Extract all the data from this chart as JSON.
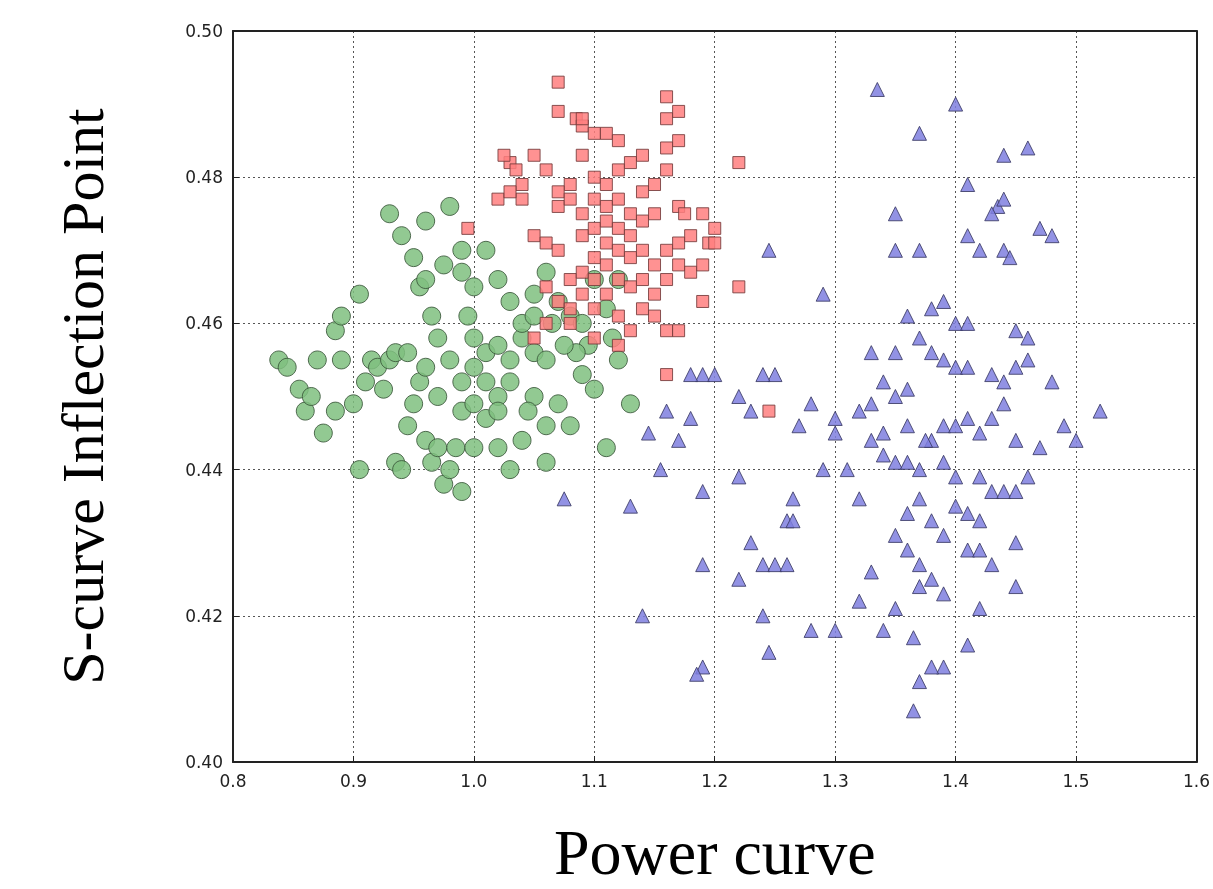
{
  "chart_data": {
    "type": "scatter",
    "xlabel": "Power curve",
    "ylabel": "S-curve Inflection Point",
    "xlim": [
      0.8,
      1.6
    ],
    "ylim": [
      0.4,
      0.5
    ],
    "xticks": [
      0.8,
      0.9,
      {
        "value": 1.0,
        "label": "1.0"
      },
      1.1,
      1.2,
      1.3,
      1.4,
      1.5,
      1.6
    ],
    "yticks": [
      {
        "value": 0.4,
        "label": "0.40"
      },
      0.42,
      0.44,
      0.46,
      0.48,
      {
        "value": 0.5,
        "label": "0.50"
      }
    ],
    "grid": true,
    "series": [
      {
        "color": "#ff7f7f",
        "marker": "square",
        "x": [
          1.07,
          1.085,
          1.09,
          1.11,
          1.12,
          1.16,
          1.16,
          1.17,
          1.07,
          1.08,
          1.1,
          1.16,
          1.17,
          1.03,
          1.04,
          1.035,
          1.05,
          1.06,
          1.07,
          1.09,
          1.1,
          1.11,
          1.12,
          1.13,
          1.14,
          1.15,
          1.16,
          1.07,
          1.08,
          1.1,
          1.11,
          1.12,
          1.13,
          1.14,
          1.15,
          1.17,
          1.19,
          1.2,
          1.22,
          1.02,
          1.04,
          0.995,
          1.05,
          1.06,
          1.07,
          1.09,
          1.1,
          1.11,
          1.12,
          1.13,
          1.14,
          1.15,
          1.16,
          1.17,
          1.18,
          1.195,
          1.08,
          1.09,
          1.1,
          1.11,
          1.12,
          1.13,
          1.14,
          1.15,
          1.16,
          1.17,
          1.18,
          1.06,
          1.07,
          1.09,
          1.1,
          1.12,
          1.14,
          1.15,
          1.16,
          1.17,
          1.19,
          1.22,
          1.06,
          1.08,
          1.1,
          1.12,
          1.13,
          1.05,
          1.16,
          1.245,
          1.19,
          1.2,
          1.175,
          1.11,
          1.12,
          1.13,
          1.14,
          1.09,
          1.1,
          1.08,
          1.11,
          1.03,
          1.025,
          1.09
        ],
        "values": [
          0.489,
          0.488,
          0.487,
          0.486,
          0.485,
          0.491,
          0.488,
          0.489,
          0.493,
          0.479,
          0.486,
          0.484,
          0.485,
          0.482,
          0.479,
          0.481,
          0.483,
          0.481,
          0.478,
          0.483,
          0.48,
          0.479,
          0.481,
          0.482,
          0.483,
          0.479,
          0.481,
          0.476,
          0.477,
          0.477,
          0.476,
          0.477,
          0.475,
          0.474,
          0.475,
          0.476,
          0.475,
          0.473,
          0.482,
          0.477,
          0.477,
          0.473,
          0.472,
          0.471,
          0.47,
          0.472,
          0.473,
          0.471,
          0.47,
          0.469,
          0.47,
          0.468,
          0.47,
          0.471,
          0.472,
          0.471,
          0.466,
          0.467,
          0.466,
          0.468,
          0.466,
          0.465,
          0.466,
          0.464,
          0.466,
          0.468,
          0.467,
          0.465,
          0.463,
          0.464,
          0.462,
          0.461,
          0.462,
          0.461,
          0.459,
          0.459,
          0.463,
          0.465,
          0.46,
          0.46,
          0.458,
          0.457,
          0.459,
          0.458,
          0.453,
          0.448,
          0.468,
          0.471,
          0.475,
          0.474,
          0.473,
          0.472,
          0.478,
          0.475,
          0.469,
          0.462,
          0.464,
          0.478,
          0.483,
          0.488
        ]
      },
      {
        "color": "#7fbf7f",
        "marker": "circle",
        "x": [
          0.838,
          0.845,
          0.855,
          0.86,
          0.865,
          0.87,
          0.875,
          0.885,
          0.89,
          0.885,
          0.89,
          0.9,
          0.905,
          0.905,
          0.91,
          0.915,
          0.92,
          0.925,
          0.93,
          0.935,
          0.935,
          0.94,
          0.945,
          0.95,
          0.955,
          0.96,
          0.96,
          0.965,
          0.97,
          0.975,
          0.98,
          0.99,
          0.985,
          0.99,
          1.0,
          1.01,
          1.02,
          1.03,
          1.04,
          1.06,
          1.05,
          1.07,
          1.08,
          1.09,
          1.1,
          1.11,
          1.13,
          1.12,
          1.0,
          1.01,
          1.02,
          1.03,
          1.04,
          1.05,
          0.99,
          0.98,
          0.97,
          0.965,
          0.955,
          0.95,
          0.94,
          0.93,
          0.96,
          0.975,
          0.98,
          0.99,
          1.0,
          1.01,
          1.02,
          1.03,
          1.04,
          1.05,
          1.06,
          1.07,
          1.08,
          1.09,
          1.095,
          1.11,
          1.12,
          1.1,
          1.065,
          1.03,
          1.02,
          1.01,
          1.0,
          0.995,
          1.06,
          1.085,
          1.115,
          1.0,
          1.02,
          0.97,
          0.945,
          1.045,
          1.06,
          0.96,
          0.99,
          1.075,
          1.05
        ],
        "values": [
          0.455,
          0.454,
          0.451,
          0.448,
          0.45,
          0.455,
          0.445,
          0.459,
          0.461,
          0.448,
          0.455,
          0.449,
          0.44,
          0.464,
          0.452,
          0.455,
          0.454,
          0.451,
          0.455,
          0.456,
          0.441,
          0.44,
          0.446,
          0.449,
          0.452,
          0.454,
          0.444,
          0.441,
          0.443,
          0.438,
          0.44,
          0.437,
          0.443,
          0.448,
          0.449,
          0.447,
          0.443,
          0.44,
          0.444,
          0.446,
          0.45,
          0.449,
          0.446,
          0.453,
          0.451,
          0.443,
          0.449,
          0.455,
          0.454,
          0.456,
          0.457,
          0.455,
          0.458,
          0.456,
          0.452,
          0.455,
          0.458,
          0.461,
          0.465,
          0.469,
          0.472,
          0.475,
          0.466,
          0.468,
          0.476,
          0.467,
          0.465,
          0.47,
          0.466,
          0.463,
          0.46,
          0.464,
          0.467,
          0.463,
          0.461,
          0.46,
          0.457,
          0.462,
          0.466,
          0.466,
          0.46,
          0.452,
          0.45,
          0.452,
          0.458,
          0.461,
          0.455,
          0.456,
          0.458,
          0.443,
          0.448,
          0.45,
          0.456,
          0.448,
          0.441,
          0.474,
          0.47,
          0.457,
          0.461
        ]
      },
      {
        "color": "#7f7fdf",
        "marker": "triangle",
        "x": [
          1.335,
          1.4,
          1.37,
          1.46,
          1.44,
          1.41,
          1.435,
          1.44,
          1.43,
          1.35,
          1.35,
          1.37,
          1.41,
          1.42,
          1.44,
          1.445,
          1.47,
          1.48,
          1.245,
          1.29,
          1.36,
          1.38,
          1.39,
          1.4,
          1.41,
          1.46,
          1.45,
          1.33,
          1.35,
          1.37,
          1.38,
          1.39,
          1.4,
          1.41,
          1.43,
          1.44,
          1.45,
          1.46,
          1.48,
          1.52,
          1.5,
          1.49,
          1.47,
          1.34,
          1.35,
          1.36,
          1.32,
          1.33,
          1.3,
          1.3,
          1.28,
          1.27,
          1.25,
          1.24,
          1.22,
          1.23,
          1.19,
          1.2,
          1.18,
          1.16,
          1.17,
          1.155,
          1.145,
          1.18,
          1.19,
          1.22,
          1.265,
          1.26,
          1.29,
          1.31,
          1.32,
          1.34,
          1.35,
          1.36,
          1.37,
          1.38,
          1.39,
          1.4,
          1.41,
          1.42,
          1.43,
          1.44,
          1.45,
          1.33,
          1.34,
          1.36,
          1.375,
          1.39,
          1.4,
          1.42,
          1.43,
          1.44,
          1.45,
          1.46,
          1.13,
          1.14,
          1.19,
          1.22,
          1.24,
          1.23,
          1.25,
          1.26,
          1.265,
          1.24,
          1.245,
          1.19,
          1.185,
          1.28,
          1.3,
          1.32,
          1.33,
          1.34,
          1.35,
          1.35,
          1.36,
          1.37,
          1.38,
          1.39,
          1.4,
          1.41,
          1.42,
          1.43,
          1.45,
          1.45,
          1.42,
          1.41,
          1.39,
          1.38,
          1.37,
          1.365,
          1.365,
          1.36,
          1.37,
          1.38,
          1.41,
          1.075,
          1.37,
          1.42,
          1.39
        ],
        "values": [
          0.492,
          0.49,
          0.486,
          0.484,
          0.483,
          0.479,
          0.476,
          0.477,
          0.475,
          0.475,
          0.47,
          0.47,
          0.472,
          0.47,
          0.47,
          0.469,
          0.473,
          0.472,
          0.47,
          0.464,
          0.461,
          0.462,
          0.463,
          0.46,
          0.46,
          0.458,
          0.459,
          0.456,
          0.456,
          0.458,
          0.456,
          0.455,
          0.454,
          0.454,
          0.453,
          0.452,
          0.454,
          0.455,
          0.452,
          0.448,
          0.444,
          0.446,
          0.443,
          0.452,
          0.45,
          0.451,
          0.448,
          0.449,
          0.447,
          0.445,
          0.449,
          0.446,
          0.453,
          0.453,
          0.45,
          0.448,
          0.453,
          0.453,
          0.447,
          0.448,
          0.444,
          0.44,
          0.445,
          0.453,
          0.437,
          0.439,
          0.436,
          0.433,
          0.44,
          0.44,
          0.436,
          0.442,
          0.441,
          0.441,
          0.44,
          0.444,
          0.446,
          0.446,
          0.447,
          0.445,
          0.447,
          0.449,
          0.444,
          0.444,
          0.445,
          0.446,
          0.444,
          0.441,
          0.439,
          0.439,
          0.437,
          0.437,
          0.437,
          0.439,
          0.435,
          0.42,
          0.427,
          0.425,
          0.427,
          0.43,
          0.427,
          0.427,
          0.433,
          0.42,
          0.415,
          0.413,
          0.412,
          0.418,
          0.418,
          0.422,
          0.426,
          0.418,
          0.421,
          0.431,
          0.429,
          0.427,
          0.425,
          0.431,
          0.435,
          0.429,
          0.433,
          0.427,
          0.43,
          0.424,
          0.421,
          0.416,
          0.413,
          0.413,
          0.411,
          0.407,
          0.417,
          0.434,
          0.436,
          0.433,
          0.434,
          0.436,
          0.424,
          0.429,
          0.423
        ]
      }
    ]
  }
}
